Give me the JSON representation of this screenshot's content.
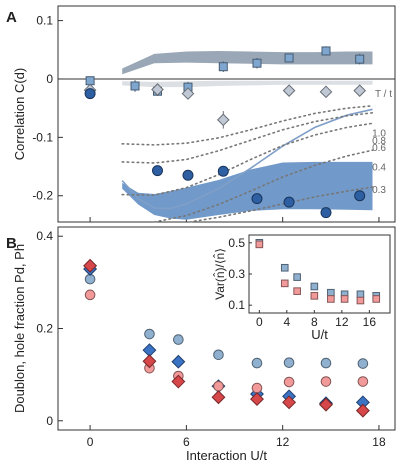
{
  "chart_data": [
    {
      "panel": "A",
      "type": "scatter",
      "xlabel": "",
      "ylabel": "Correlation C(d)",
      "xlim": [
        -2,
        19
      ],
      "ylim": [
        -0.245,
        0.125
      ],
      "yticks": [
        0.1,
        0,
        -0.1,
        -0.2
      ],
      "ytick_labels": [
        "0.1",
        "0",
        "-0.1",
        "-0.2"
      ],
      "grid": false,
      "series": [
        {
          "marker": "square",
          "color": "#7fa6cf",
          "points": [
            [
              0,
              -0.003,
              0.004
            ],
            [
              2.8,
              -0.012,
              0.01
            ],
            [
              4.2,
              -0.021,
              0.008
            ],
            [
              6.1,
              -0.014,
              0.009
            ],
            [
              8.3,
              0.021,
              0.009
            ],
            [
              10.4,
              0.027,
              0.009
            ],
            [
              12.4,
              0.036,
              0.007
            ],
            [
              14.7,
              0.048,
              0.008
            ],
            [
              16.8,
              0.034,
              0.009
            ]
          ]
        },
        {
          "marker": "diamond",
          "color": "#bfc8d4",
          "points": [
            [
              0,
              -0.019,
              0.004
            ],
            [
              4.2,
              -0.018,
              0.007
            ],
            [
              6.1,
              -0.025,
              0.008
            ],
            [
              8.3,
              -0.07,
              0.015
            ],
            [
              12.4,
              -0.02,
              0.006
            ],
            [
              14.7,
              -0.022,
              0.006
            ],
            [
              16.8,
              -0.02,
              0.006
            ]
          ]
        },
        {
          "marker": "circle",
          "color": "#2e5fa3",
          "points": [
            [
              0,
              -0.025,
              0.004
            ],
            [
              4.2,
              -0.157,
              0.008
            ],
            [
              6.1,
              -0.165,
              0.006
            ],
            [
              8.3,
              -0.158,
              0.006
            ],
            [
              10.4,
              -0.205,
              0.008
            ],
            [
              12.4,
              -0.211,
              0.007
            ],
            [
              14.7,
              -0.229,
              0.007
            ],
            [
              16.8,
              -0.2,
              0.008
            ]
          ]
        }
      ],
      "bands": [
        {
          "color": "#9aa7b6",
          "x": [
            2,
            4,
            6,
            8,
            10,
            12,
            14,
            16,
            17.6
          ],
          "lower": [
            0.008,
            0.027,
            0.028,
            0.027,
            0.026,
            0.025,
            0.025,
            0.025,
            0.025
          ],
          "upper": [
            0.018,
            0.043,
            0.047,
            0.048,
            0.047,
            0.046,
            0.046,
            0.047,
            0.047
          ]
        },
        {
          "color": "#dcdfe3",
          "x": [
            2,
            4,
            6,
            8,
            10,
            12,
            14,
            16,
            17.6
          ],
          "lower": [
            -0.011,
            -0.014,
            -0.014,
            -0.012,
            -0.011,
            -0.01,
            -0.01,
            -0.01,
            -0.01
          ],
          "upper": [
            -0.004,
            -0.005,
            -0.004,
            -0.003,
            -0.003,
            -0.003,
            -0.003,
            -0.003,
            -0.003
          ]
        },
        {
          "color": "#7199c9",
          "x": [
            2,
            3,
            4,
            5,
            6,
            8,
            10,
            12,
            14,
            16,
            17.6
          ],
          "lower": [
            -0.188,
            -0.215,
            -0.233,
            -0.239,
            -0.241,
            -0.233,
            -0.226,
            -0.223,
            -0.223,
            -0.224,
            -0.225
          ],
          "upper": [
            -0.178,
            -0.195,
            -0.197,
            -0.192,
            -0.186,
            -0.173,
            -0.155,
            -0.143,
            -0.142,
            -0.142,
            -0.142
          ]
        }
      ],
      "curves": [
        {
          "style": "solid",
          "color": "#7f9fc8",
          "x": [
            2,
            3,
            4,
            5,
            6,
            8,
            10,
            12,
            14,
            16,
            17.6
          ],
          "y": [
            -0.174,
            -0.205,
            -0.221,
            -0.222,
            -0.214,
            -0.188,
            -0.153,
            -0.115,
            -0.083,
            -0.062,
            -0.052
          ]
        },
        {
          "style": "dotted",
          "T/t": "1.0",
          "x": [
            2,
            4,
            6,
            8,
            10,
            12,
            14,
            16,
            17.6
          ],
          "y": [
            -0.111,
            -0.113,
            -0.11,
            -0.101,
            -0.087,
            -0.072,
            -0.059,
            -0.05,
            -0.046
          ]
        },
        {
          "style": "dotted",
          "T/t": "0.8",
          "x": [
            2,
            4,
            6,
            8,
            10,
            12,
            14,
            16,
            17.6
          ],
          "y": [
            -0.142,
            -0.144,
            -0.138,
            -0.123,
            -0.105,
            -0.087,
            -0.073,
            -0.063,
            -0.058
          ]
        },
        {
          "style": "dotted",
          "T/t": "0.6",
          "x": [
            2,
            4,
            6,
            8,
            10,
            12,
            14,
            16,
            17.6
          ],
          "y": [
            -0.198,
            -0.199,
            -0.186,
            -0.164,
            -0.138,
            -0.114,
            -0.096,
            -0.083,
            -0.076
          ]
        },
        {
          "style": "dotted",
          "T/t": "0.4",
          "x": [
            4,
            6,
            8,
            10,
            12,
            14,
            16,
            17.6
          ],
          "y": [
            -0.245,
            -0.234,
            -0.215,
            -0.192,
            -0.168,
            -0.148,
            -0.132,
            -0.122
          ]
        },
        {
          "style": "dotted",
          "T/t": "0.3",
          "x": [
            6.2,
            8,
            10,
            12,
            14,
            16,
            17.6
          ],
          "y": [
            -0.245,
            -0.237,
            -0.226,
            -0.214,
            -0.202,
            -0.192,
            -0.185
          ]
        }
      ],
      "legend_title": "T / t",
      "curve_labels": [
        "1.0",
        "0.8",
        "0.6",
        "0.4",
        "0.3"
      ]
    },
    {
      "panel": "B",
      "type": "scatter",
      "xlabel": "Interaction U/t",
      "ylabel": "Doublon, hole fraction Pd, Ph",
      "xlim": [
        -2,
        19
      ],
      "ylim": [
        -0.02,
        0.42
      ],
      "xticks": [
        0,
        6,
        12,
        18
      ],
      "yticks": [
        0,
        0.2,
        0.4
      ],
      "ytick_labels": [
        "0",
        "0.2",
        "0.4"
      ],
      "series": [
        {
          "marker": "circle",
          "color": "#8fb0cf",
          "x": [
            0,
            3.7,
            5.5,
            8.0,
            10.4,
            12.4,
            14.7,
            17.0
          ],
          "y": [
            0.307,
            0.188,
            0.176,
            0.143,
            0.125,
            0.126,
            0.125,
            0.124
          ]
        },
        {
          "marker": "diamond",
          "color": "#3a72c4",
          "x": [
            0,
            3.7,
            5.5,
            8.0,
            10.4,
            12.4,
            14.7,
            17.0
          ],
          "y": [
            0.329,
            0.153,
            0.128,
            0.075,
            0.058,
            0.053,
            0.038,
            0.04
          ]
        },
        {
          "marker": "circle",
          "color": "#f29a9a",
          "x": [
            0,
            3.7,
            5.5,
            8.0,
            10.4,
            12.4,
            14.7,
            17.0
          ],
          "y": [
            0.273,
            0.114,
            0.097,
            0.075,
            0.071,
            0.084,
            0.085,
            0.085
          ]
        },
        {
          "marker": "diamond",
          "color": "#d6474a",
          "x": [
            0,
            3.7,
            5.5,
            8.0,
            10.4,
            12.4,
            14.7,
            17.0
          ],
          "y": [
            0.336,
            0.129,
            0.085,
            0.051,
            0.047,
            0.04,
            0.035,
            0.022
          ]
        }
      ]
    },
    {
      "panel": "B-inset",
      "type": "scatter",
      "xlabel": "U/t",
      "ylabel": "Var(n̂)/⟨n̂⟩",
      "xlim": [
        -1.5,
        19
      ],
      "ylim": [
        0.05,
        0.55
      ],
      "xticks": [
        0,
        4,
        8,
        12,
        16
      ],
      "yticks": [
        0.1,
        0.3,
        0.5
      ],
      "ytick_labels": [
        "0.1",
        "0.3",
        "0.5"
      ],
      "series": [
        {
          "marker": "square",
          "color": "#8fb0cf",
          "x": [
            0,
            3.7,
            5.5,
            8.0,
            10.4,
            12.4,
            14.7,
            17.0
          ],
          "y": [
            0.5,
            0.34,
            0.28,
            0.22,
            0.18,
            0.17,
            0.17,
            0.16
          ]
        },
        {
          "marker": "square",
          "color": "#f29a9a",
          "x": [
            0,
            3.7,
            5.5,
            8.0,
            10.4,
            12.4,
            14.7,
            17.0
          ],
          "y": [
            0.49,
            0.24,
            0.19,
            0.16,
            0.14,
            0.14,
            0.13,
            0.14
          ]
        }
      ]
    }
  ]
}
